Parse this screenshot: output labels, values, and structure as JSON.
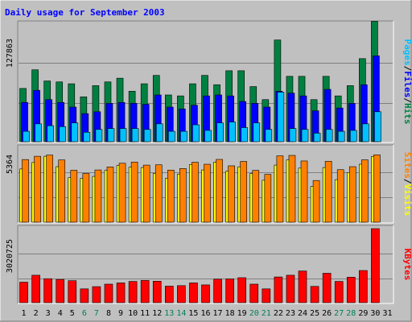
{
  "title": "Daily usage for September 2003",
  "colors": {
    "background": "#c0c0c0",
    "title": "#0000ff",
    "hits": "#008040",
    "files": "#0000ff",
    "pages": "#00c0ff",
    "visits": "#ffff00",
    "sites": "#ff8000",
    "kbytes": "#ff0000",
    "weekend_day": "#00805c",
    "weekday": "#000000"
  },
  "chart_data": [
    {
      "type": "bar",
      "title": "Daily usage for September 2003",
      "categories": [
        "1",
        "2",
        "3",
        "4",
        "5",
        "6",
        "7",
        "8",
        "9",
        "10",
        "11",
        "12",
        "13",
        "14",
        "15",
        "16",
        "17",
        "18",
        "19",
        "20",
        "21",
        "22",
        "23",
        "24",
        "25",
        "26",
        "27",
        "28",
        "29",
        "30",
        "31"
      ],
      "weekend_days": [
        "6",
        "7",
        "13",
        "14",
        "20",
        "21",
        "27",
        "28"
      ],
      "ylabel_parts": [
        "Pages",
        "/",
        "Files",
        "/",
        "Hits"
      ],
      "ymax_label": "127863",
      "ylim": [
        0,
        127863
      ],
      "grid": true,
      "series": [
        {
          "name": "Hits",
          "values": [
            58000,
            78000,
            66000,
            65000,
            63000,
            49000,
            61000,
            65000,
            69000,
            55000,
            63000,
            72000,
            51000,
            50000,
            63000,
            72000,
            62000,
            77000,
            77000,
            60000,
            46000,
            110000,
            71000,
            71000,
            46000,
            71000,
            50000,
            61000,
            90000,
            130000,
            0
          ]
        },
        {
          "name": "Files",
          "values": [
            43000,
            56000,
            46000,
            43000,
            38000,
            31000,
            33000,
            42000,
            43000,
            42000,
            41000,
            51000,
            38000,
            36000,
            40000,
            50000,
            51000,
            50000,
            44000,
            42000,
            38000,
            55000,
            53000,
            50000,
            34000,
            57000,
            37000,
            42000,
            62000,
            93000,
            0
          ]
        },
        {
          "name": "Pages",
          "values": [
            12000,
            20000,
            18000,
            17000,
            21000,
            11000,
            14000,
            15000,
            15000,
            15000,
            14000,
            20000,
            12000,
            12000,
            19000,
            13000,
            21000,
            22000,
            16000,
            21000,
            14000,
            54000,
            15000,
            14000,
            10000,
            14000,
            12000,
            13000,
            20000,
            33000,
            0
          ]
        }
      ]
    },
    {
      "type": "bar",
      "categories": [
        "1",
        "2",
        "3",
        "4",
        "5",
        "6",
        "7",
        "8",
        "9",
        "10",
        "11",
        "12",
        "13",
        "14",
        "15",
        "16",
        "17",
        "18",
        "19",
        "20",
        "21",
        "22",
        "23",
        "24",
        "25",
        "26",
        "27",
        "28",
        "29",
        "30",
        "31"
      ],
      "ylabel_parts": [
        "Sites",
        "/",
        "Visits"
      ],
      "ymax_label": "5364",
      "ylim": [
        0,
        5364
      ],
      "grid": true,
      "series": [
        {
          "name": "Visits",
          "values": [
            3790,
            4240,
            4680,
            3950,
            3180,
            3130,
            3270,
            3690,
            4040,
            3910,
            3890,
            3480,
            3130,
            3430,
            4100,
            3720,
            4260,
            3640,
            3940,
            3460,
            3000,
            4060,
            4420,
            3850,
            2570,
            3890,
            3040,
            3540,
            4120,
            4670,
            0
          ]
        },
        {
          "name": "Sites",
          "values": [
            4450,
            4680,
            4760,
            4420,
            3700,
            3470,
            3720,
            3930,
            4190,
            4270,
            4060,
            4080,
            3710,
            3820,
            4260,
            4120,
            4460,
            4010,
            4320,
            3690,
            3410,
            4710,
            4740,
            4350,
            2980,
            4330,
            3740,
            3950,
            4430,
            4780,
            0
          ]
        }
      ]
    },
    {
      "type": "bar",
      "categories": [
        "1",
        "2",
        "3",
        "4",
        "5",
        "6",
        "7",
        "8",
        "9",
        "10",
        "11",
        "12",
        "13",
        "14",
        "15",
        "16",
        "17",
        "18",
        "19",
        "20",
        "21",
        "22",
        "23",
        "24",
        "25",
        "26",
        "27",
        "28",
        "29",
        "30",
        "31"
      ],
      "ylabel_parts": [
        "KBytes"
      ],
      "ymax_label": "3020725",
      "ylim": [
        0,
        3020725
      ],
      "grid": true,
      "series": [
        {
          "name": "KBytes",
          "values": [
            860000,
            1140000,
            1000000,
            970000,
            920000,
            590000,
            680000,
            780000,
            830000,
            890000,
            930000,
            900000,
            700000,
            720000,
            830000,
            750000,
            980000,
            990000,
            1040000,
            780000,
            590000,
            1070000,
            1140000,
            1310000,
            690000,
            1220000,
            890000,
            1060000,
            1330000,
            3020000,
            0
          ]
        }
      ]
    }
  ]
}
